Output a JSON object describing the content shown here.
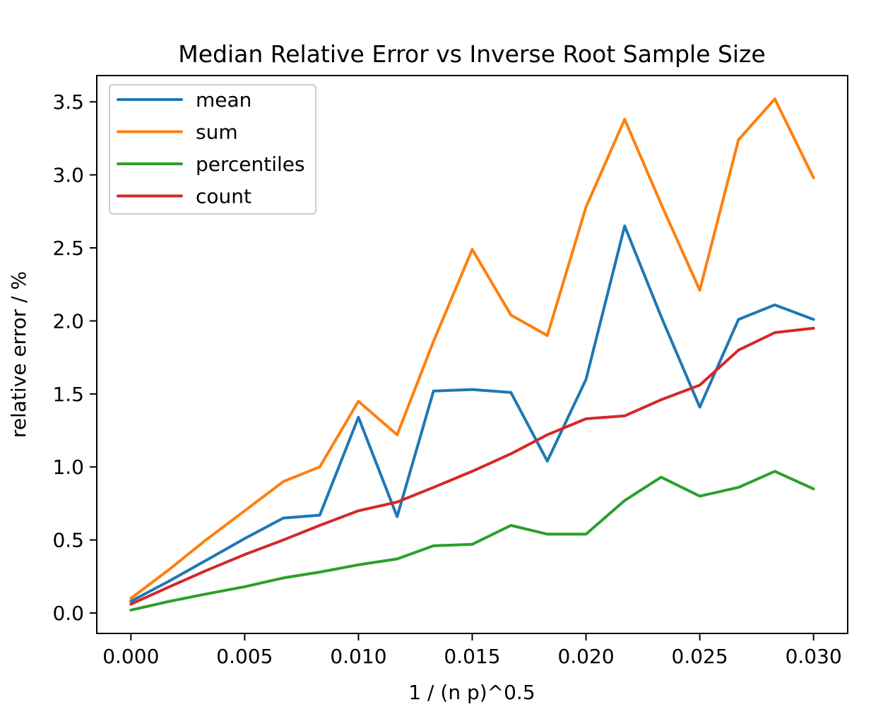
{
  "chart": {
    "title": "Median Relative Error vs Inverse Root Sample Size",
    "xlabel": "1 / (n p)^0.5",
    "ylabel": "relative error / %"
  },
  "chart_data": {
    "type": "line",
    "title": "Median Relative Error vs Inverse Root Sample Size",
    "xlabel": "1 / (n p)^0.5",
    "ylabel": "relative error / %",
    "x": [
      0.0,
      0.0017,
      0.0033,
      0.005,
      0.0067,
      0.0083,
      0.01,
      0.0117,
      0.0133,
      0.015,
      0.0167,
      0.0183,
      0.02,
      0.0217,
      0.0233,
      0.025,
      0.0267,
      0.0283,
      0.03
    ],
    "series": [
      {
        "name": "mean",
        "color": "#1f77b4",
        "values": [
          0.08,
          0.22,
          0.36,
          0.51,
          0.65,
          0.67,
          1.34,
          0.66,
          1.52,
          1.53,
          1.51,
          1.04,
          1.6,
          2.65,
          2.03,
          1.41,
          2.01,
          2.11,
          2.01
        ]
      },
      {
        "name": "sum",
        "color": "#ff7f0e",
        "values": [
          0.1,
          0.3,
          0.5,
          0.7,
          0.9,
          1.0,
          1.45,
          1.22,
          1.86,
          2.49,
          2.04,
          1.9,
          2.78,
          3.38,
          2.8,
          2.21,
          3.24,
          3.52,
          2.98
        ]
      },
      {
        "name": "percentiles",
        "color": "#2ca02c",
        "values": [
          0.02,
          0.08,
          0.13,
          0.18,
          0.24,
          0.28,
          0.33,
          0.37,
          0.46,
          0.47,
          0.6,
          0.54,
          0.54,
          0.77,
          0.93,
          0.8,
          0.86,
          0.97,
          0.85
        ]
      },
      {
        "name": "count",
        "color": "#d62728",
        "values": [
          0.06,
          0.18,
          0.29,
          0.4,
          0.5,
          0.6,
          0.7,
          0.76,
          0.86,
          0.97,
          1.09,
          1.22,
          1.33,
          1.35,
          1.46,
          1.56,
          1.8,
          1.92,
          1.95
        ]
      }
    ],
    "xticks": {
      "values": [
        0.0,
        0.005,
        0.01,
        0.015,
        0.02,
        0.025,
        0.03
      ],
      "labels": [
        "0.000",
        "0.005",
        "0.010",
        "0.015",
        "0.020",
        "0.025",
        "0.030"
      ]
    },
    "yticks": {
      "values": [
        0.0,
        0.5,
        1.0,
        1.5,
        2.0,
        2.5,
        3.0,
        3.5
      ],
      "labels": [
        "0.0",
        "0.5",
        "1.0",
        "1.5",
        "2.0",
        "2.5",
        "3.0",
        "3.5"
      ]
    },
    "xlim": [
      -0.0015,
      0.0315
    ],
    "ylim": [
      -0.14,
      3.68
    ],
    "grid": false,
    "legend_position": "upper left",
    "colors": {
      "background": "#ffffff",
      "spine": "#000000",
      "text": "#000000",
      "legend_border": "#cccccc",
      "legend_background": "#ffffff"
    }
  }
}
